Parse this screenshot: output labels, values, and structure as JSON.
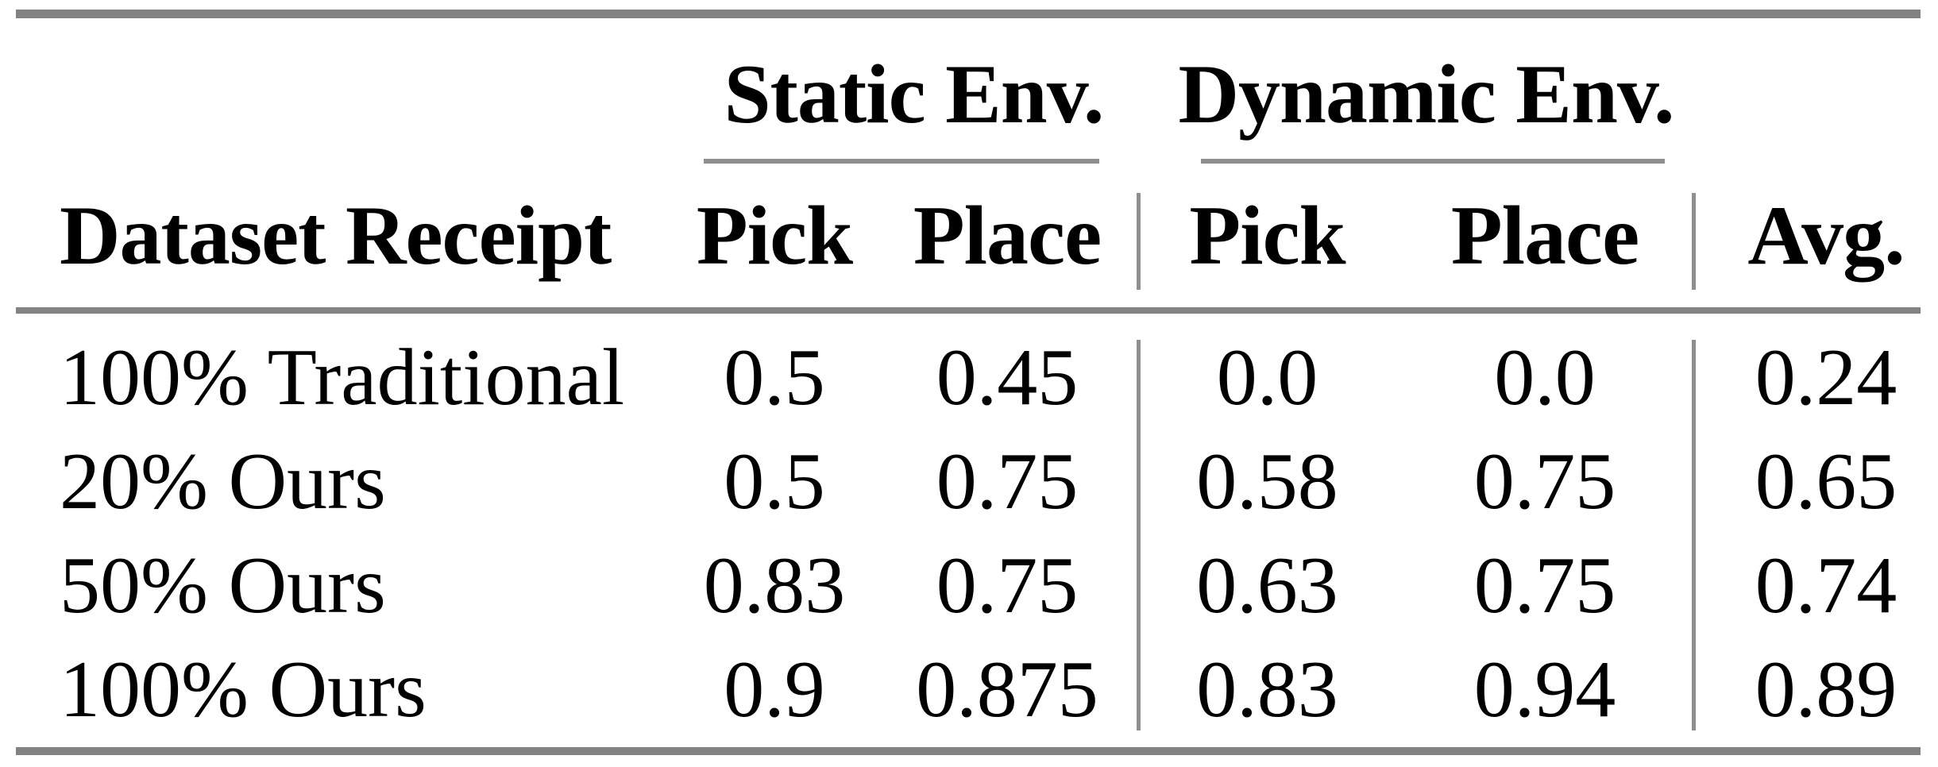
{
  "table": {
    "group_headers": [
      "Static Env.",
      "Dynamic Env."
    ],
    "columns": [
      "Dataset Receipt",
      "Pick",
      "Place",
      "Pick",
      "Place",
      "Avg."
    ],
    "rows": [
      {
        "cells": [
          "100% Traditional",
          "0.5",
          "0.45",
          "0.0",
          "0.0",
          "0.24"
        ]
      },
      {
        "cells": [
          "20% Ours",
          "0.5",
          "0.75",
          "0.58",
          "0.75",
          "0.65"
        ]
      },
      {
        "cells": [
          "50% Ours",
          "0.83",
          "0.75",
          "0.63",
          "0.75",
          "0.74"
        ]
      },
      {
        "cells": [
          "100% Ours",
          "0.9",
          "0.875",
          "0.83",
          "0.94",
          "0.89"
        ]
      }
    ],
    "colors": {
      "rule": "#828282",
      "thin_rule": "#8f8f8f",
      "divider": "#8f8f8f",
      "text": "#000000",
      "background": "#ffffff"
    }
  }
}
